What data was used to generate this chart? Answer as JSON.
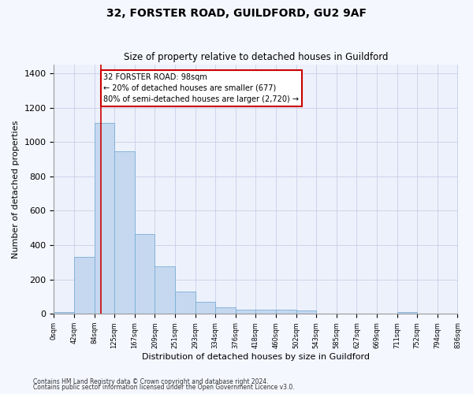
{
  "title1": "32, FORSTER ROAD, GUILDFORD, GU2 9AF",
  "title2": "Size of property relative to detached houses in Guildford",
  "xlabel": "Distribution of detached houses by size in Guildford",
  "ylabel": "Number of detached properties",
  "bin_edges": [
    0,
    42,
    84,
    125,
    167,
    209,
    251,
    293,
    334,
    376,
    418,
    460,
    502,
    543,
    585,
    627,
    669,
    711,
    752,
    794,
    836
  ],
  "bar_heights": [
    10,
    330,
    1110,
    945,
    462,
    275,
    130,
    68,
    40,
    22,
    25,
    25,
    18,
    2,
    2,
    2,
    2,
    12,
    2,
    2
  ],
  "bar_color": "#c5d8f0",
  "bar_edge_color": "#7aaed4",
  "vline_x": 98,
  "vline_color": "#cc0000",
  "annotation_text": "32 FORSTER ROAD: 98sqm\n← 20% of detached houses are smaller (677)\n80% of semi-detached houses are larger (2,720) →",
  "annotation_box_color": "#ffffff",
  "annotation_box_edge": "#cc0000",
  "footnote1": "Contains HM Land Registry data © Crown copyright and database right 2024.",
  "footnote2": "Contains public sector information licensed under the Open Government Licence v3.0.",
  "bg_color": "#f5f7ff",
  "plot_bg_color": "#edf1fb",
  "grid_color": "#c8cfe8",
  "ylim": [
    0,
    1450
  ],
  "xlim": [
    0,
    836
  ],
  "yticks": [
    0,
    200,
    400,
    600,
    800,
    1000,
    1200,
    1400
  ]
}
